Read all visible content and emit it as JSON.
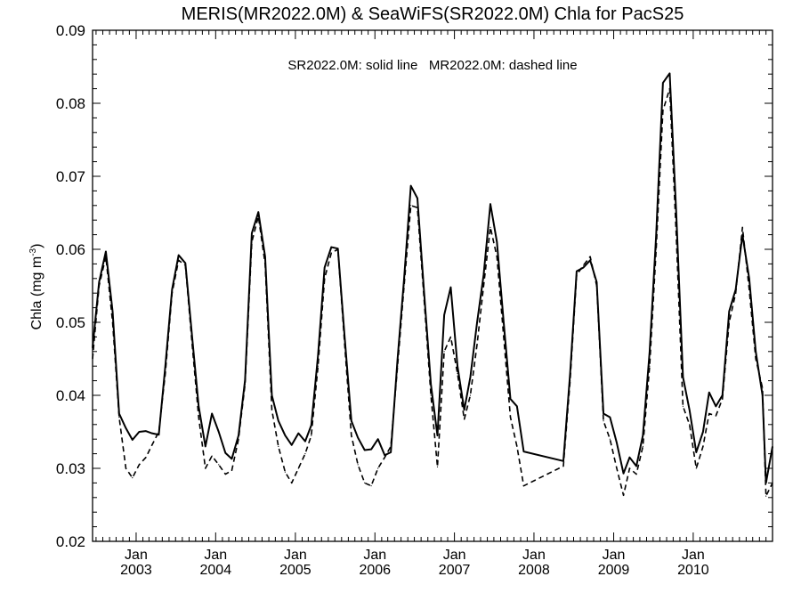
{
  "chart_data": {
    "type": "line",
    "title": "MERIS(MR2022.0M) & SeaWiFS(SR2022.0M)  Chla for PacS25",
    "legend_note": "SR2022.0M: solid line   MR2022.0M: dashed line",
    "xlabel": "",
    "ylabel": "Chla (mg m",
    "ylabel_exponent": "-3",
    "ylabel_close": ")",
    "ylim": [
      0.02,
      0.09
    ],
    "yticks": [
      0.02,
      0.03,
      0.04,
      0.05,
      0.06,
      0.07,
      0.08,
      0.09
    ],
    "ytick_labels": [
      "0.02",
      "0.03",
      "0.04",
      "0.05",
      "0.06",
      "0.07",
      "0.08",
      "0.09"
    ],
    "xlim": [
      "2002-06-15",
      "2010-12-31"
    ],
    "xticks": [
      {
        "date": "2003-01-01",
        "month": "Jan",
        "year": "2003"
      },
      {
        "date": "2004-01-01",
        "month": "Jan",
        "year": "2004"
      },
      {
        "date": "2005-01-01",
        "month": "Jan",
        "year": "2005"
      },
      {
        "date": "2006-01-01",
        "month": "Jan",
        "year": "2006"
      },
      {
        "date": "2007-01-01",
        "month": "Jan",
        "year": "2007"
      },
      {
        "date": "2008-01-01",
        "month": "Jan",
        "year": "2008"
      },
      {
        "date": "2009-01-01",
        "month": "Jan",
        "year": "2009"
      },
      {
        "date": "2010-01-01",
        "month": "Jan",
        "year": "2010"
      }
    ],
    "grid": false,
    "series": [
      {
        "name": "SR2022.0M",
        "style": "solid",
        "color": "#000000",
        "points": [
          [
            "2002-06-15",
            0.0465
          ],
          [
            "2002-07-15",
            0.0555
          ],
          [
            "2002-08-15",
            0.0597
          ],
          [
            "2002-09-15",
            0.0515
          ],
          [
            "2002-10-15",
            0.0375
          ],
          [
            "2002-11-15",
            0.0355
          ],
          [
            "2002-12-15",
            0.0339
          ],
          [
            "2003-01-15",
            0.035
          ],
          [
            "2003-02-15",
            0.0351
          ],
          [
            "2003-03-15",
            0.0348
          ],
          [
            "2003-04-15",
            0.0346
          ],
          [
            "2003-05-15",
            0.044
          ],
          [
            "2003-06-15",
            0.0545
          ],
          [
            "2003-07-15",
            0.0592
          ],
          [
            "2003-08-15",
            0.0581
          ],
          [
            "2003-09-15",
            0.048
          ],
          [
            "2003-10-15",
            0.0385
          ],
          [
            "2003-11-15",
            0.033
          ],
          [
            "2003-12-15",
            0.0375
          ],
          [
            "2004-01-15",
            0.035
          ],
          [
            "2004-02-15",
            0.0321
          ],
          [
            "2004-03-15",
            0.0313
          ],
          [
            "2004-04-15",
            0.0345
          ],
          [
            "2004-05-15",
            0.0421
          ],
          [
            "2004-06-15",
            0.0622
          ],
          [
            "2004-07-15",
            0.0651
          ],
          [
            "2004-08-15",
            0.059
          ],
          [
            "2004-09-15",
            0.04
          ],
          [
            "2004-10-15",
            0.0365
          ],
          [
            "2004-11-15",
            0.0345
          ],
          [
            "2004-12-15",
            0.0332
          ],
          [
            "2005-01-15",
            0.0348
          ],
          [
            "2005-02-15",
            0.0337
          ],
          [
            "2005-03-15",
            0.0359
          ],
          [
            "2005-04-15",
            0.0455
          ],
          [
            "2005-05-15",
            0.0575
          ],
          [
            "2005-06-15",
            0.0603
          ],
          [
            "2005-07-15",
            0.0601
          ],
          [
            "2005-08-15",
            0.048
          ],
          [
            "2005-09-15",
            0.0365
          ],
          [
            "2005-10-15",
            0.0342
          ],
          [
            "2005-11-15",
            0.0325
          ],
          [
            "2005-12-15",
            0.0326
          ],
          [
            "2006-01-15",
            0.034
          ],
          [
            "2006-02-15",
            0.0318
          ],
          [
            "2006-03-15",
            0.0322
          ],
          [
            "2006-04-15",
            0.045
          ],
          [
            "2006-05-15",
            0.056
          ],
          [
            "2006-06-15",
            0.0687
          ],
          [
            "2006-07-15",
            0.067
          ],
          [
            "2006-08-15",
            0.054
          ],
          [
            "2006-09-15",
            0.0415
          ],
          [
            "2006-10-15",
            0.0345
          ],
          [
            "2006-11-15",
            0.051
          ],
          [
            "2006-12-15",
            0.0548
          ],
          [
            "2007-01-15",
            0.044
          ],
          [
            "2007-02-15",
            0.038
          ],
          [
            "2007-03-15",
            0.0425
          ],
          [
            "2007-04-15",
            0.05
          ],
          [
            "2007-05-15",
            0.0565
          ],
          [
            "2007-06-15",
            0.0662
          ],
          [
            "2007-07-15",
            0.061
          ],
          [
            "2007-08-15",
            0.05
          ],
          [
            "2007-09-15",
            0.0395
          ],
          [
            "2007-10-15",
            0.0385
          ],
          [
            "2007-11-15",
            0.0323
          ],
          [
            "2008-05-15",
            0.031
          ],
          [
            "2008-06-15",
            0.043
          ],
          [
            "2008-07-15",
            0.057
          ],
          [
            "2008-08-15",
            0.0575
          ],
          [
            "2008-09-15",
            0.0585
          ],
          [
            "2008-10-15",
            0.0555
          ],
          [
            "2008-11-15",
            0.0375
          ],
          [
            "2008-12-15",
            0.037
          ],
          [
            "2009-01-15",
            0.0335
          ],
          [
            "2009-02-15",
            0.0293
          ],
          [
            "2009-03-15",
            0.0315
          ],
          [
            "2009-04-15",
            0.0303
          ],
          [
            "2009-05-15",
            0.0345
          ],
          [
            "2009-06-15",
            0.046
          ],
          [
            "2009-07-15",
            0.062
          ],
          [
            "2009-08-15",
            0.0828
          ],
          [
            "2009-09-15",
            0.0841
          ],
          [
            "2009-10-15",
            0.065
          ],
          [
            "2009-11-15",
            0.0425
          ],
          [
            "2009-12-15",
            0.038
          ],
          [
            "2010-01-15",
            0.0322
          ],
          [
            "2010-02-15",
            0.035
          ],
          [
            "2010-03-15",
            0.0404
          ],
          [
            "2010-04-15",
            0.0385
          ],
          [
            "2010-05-15",
            0.04
          ],
          [
            "2010-06-15",
            0.0515
          ],
          [
            "2010-07-15",
            0.0545
          ],
          [
            "2010-08-15",
            0.062
          ],
          [
            "2010-09-15",
            0.056
          ],
          [
            "2010-10-15",
            0.046
          ],
          [
            "2010-11-15",
            0.04
          ],
          [
            "2010-12-01",
            0.028
          ],
          [
            "2010-12-31",
            0.033
          ]
        ]
      },
      {
        "name": "MR2022.0M",
        "style": "dashed",
        "color": "#000000",
        "points": [
          [
            "2002-06-15",
            0.045
          ],
          [
            "2002-07-15",
            0.055
          ],
          [
            "2002-08-15",
            0.059
          ],
          [
            "2002-09-15",
            0.05
          ],
          [
            "2002-10-15",
            0.037
          ],
          [
            "2002-11-15",
            0.03
          ],
          [
            "2002-12-15",
            0.0287
          ],
          [
            "2003-01-15",
            0.0305
          ],
          [
            "2003-02-15",
            0.0315
          ],
          [
            "2003-03-15",
            0.0332
          ],
          [
            "2003-04-15",
            0.035
          ],
          [
            "2003-05-15",
            0.043
          ],
          [
            "2003-06-15",
            0.054
          ],
          [
            "2003-07-15",
            0.0585
          ],
          [
            "2003-08-15",
            0.0578
          ],
          [
            "2003-09-15",
            0.047
          ],
          [
            "2003-10-15",
            0.037
          ],
          [
            "2003-11-15",
            0.03
          ],
          [
            "2003-12-15",
            0.0317
          ],
          [
            "2004-01-15",
            0.0305
          ],
          [
            "2004-02-15",
            0.0292
          ],
          [
            "2004-03-15",
            0.0297
          ],
          [
            "2004-04-15",
            0.034
          ],
          [
            "2004-05-15",
            0.0415
          ],
          [
            "2004-06-15",
            0.061
          ],
          [
            "2004-07-15",
            0.0645
          ],
          [
            "2004-08-15",
            0.058
          ],
          [
            "2004-09-15",
            0.038
          ],
          [
            "2004-10-15",
            0.033
          ],
          [
            "2004-11-15",
            0.0295
          ],
          [
            "2004-12-15",
            0.028
          ],
          [
            "2005-01-15",
            0.03
          ],
          [
            "2005-02-15",
            0.032
          ],
          [
            "2005-03-15",
            0.0345
          ],
          [
            "2005-04-15",
            0.044
          ],
          [
            "2005-05-15",
            0.056
          ],
          [
            "2005-06-15",
            0.0595
          ],
          [
            "2005-07-15",
            0.06
          ],
          [
            "2005-08-15",
            0.047
          ],
          [
            "2005-09-15",
            0.0345
          ],
          [
            "2005-10-15",
            0.0305
          ],
          [
            "2005-11-15",
            0.028
          ],
          [
            "2005-12-15",
            0.0276
          ],
          [
            "2006-01-15",
            0.03
          ],
          [
            "2006-02-15",
            0.0315
          ],
          [
            "2006-03-15",
            0.033
          ],
          [
            "2006-04-15",
            0.044
          ],
          [
            "2006-05-15",
            0.055
          ],
          [
            "2006-06-15",
            0.066
          ],
          [
            "2006-07-15",
            0.0657
          ],
          [
            "2006-08-15",
            0.053
          ],
          [
            "2006-09-15",
            0.04
          ],
          [
            "2006-10-15",
            0.0302
          ],
          [
            "2006-11-15",
            0.046
          ],
          [
            "2006-12-15",
            0.048
          ],
          [
            "2007-01-15",
            0.043
          ],
          [
            "2007-02-15",
            0.0367
          ],
          [
            "2007-03-15",
            0.04
          ],
          [
            "2007-04-15",
            0.047
          ],
          [
            "2007-05-15",
            0.055
          ],
          [
            "2007-06-15",
            0.063
          ],
          [
            "2007-07-15",
            0.059
          ],
          [
            "2007-08-15",
            0.048
          ],
          [
            "2007-09-15",
            0.037
          ],
          [
            "2007-10-15",
            0.033
          ],
          [
            "2007-11-15",
            0.0276
          ],
          [
            "2008-05-15",
            0.0303
          ],
          [
            "2008-06-15",
            0.042
          ],
          [
            "2008-07-15",
            0.0565
          ],
          [
            "2008-08-15",
            0.0578
          ],
          [
            "2008-09-15",
            0.059
          ],
          [
            "2008-10-15",
            0.055
          ],
          [
            "2008-11-15",
            0.0365
          ],
          [
            "2008-12-15",
            0.034
          ],
          [
            "2009-01-15",
            0.03
          ],
          [
            "2009-02-15",
            0.0263
          ],
          [
            "2009-03-15",
            0.03
          ],
          [
            "2009-04-15",
            0.0292
          ],
          [
            "2009-05-15",
            0.033
          ],
          [
            "2009-06-15",
            0.044
          ],
          [
            "2009-07-15",
            0.06
          ],
          [
            "2009-08-15",
            0.079
          ],
          [
            "2009-09-15",
            0.082
          ],
          [
            "2009-10-15",
            0.062
          ],
          [
            "2009-11-15",
            0.0385
          ],
          [
            "2009-12-15",
            0.036
          ],
          [
            "2010-01-15",
            0.03
          ],
          [
            "2010-02-15",
            0.033
          ],
          [
            "2010-03-15",
            0.0375
          ],
          [
            "2010-04-15",
            0.0372
          ],
          [
            "2010-05-15",
            0.0395
          ],
          [
            "2010-06-15",
            0.05
          ],
          [
            "2010-07-15",
            0.054
          ],
          [
            "2010-08-15",
            0.063
          ],
          [
            "2010-09-15",
            0.0545
          ],
          [
            "2010-10-15",
            0.045
          ],
          [
            "2010-11-15",
            0.041
          ],
          [
            "2010-12-01",
            0.0262
          ],
          [
            "2010-12-31",
            0.028
          ]
        ]
      }
    ]
  }
}
